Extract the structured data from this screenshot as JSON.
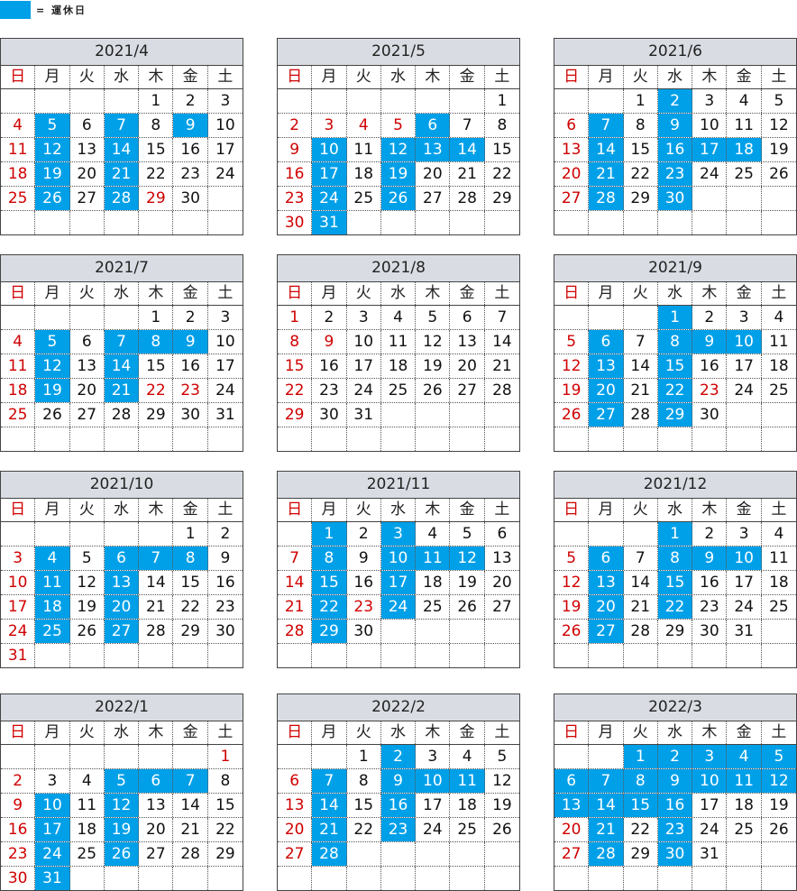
{
  "legend": {
    "color": "#00A0E9",
    "text": "= 運休日"
  },
  "weekday_headers": [
    "日",
    "月",
    "火",
    "水",
    "木",
    "金",
    "土"
  ],
  "colors": {
    "off_day": "#00A0E9",
    "sunday_holiday": "#d00000",
    "title_bg": "#d9dde3"
  },
  "calendars": [
    {
      "title": "2021/4",
      "weeks": [
        [
          null,
          null,
          null,
          null,
          "1",
          "2",
          "3"
        ],
        [
          "4",
          "5",
          "6",
          "7",
          "8",
          "9",
          "10"
        ],
        [
          "11",
          "12",
          "13",
          "14",
          "15",
          "16",
          "17"
        ],
        [
          "18",
          "19",
          "20",
          "21",
          "22",
          "23",
          "24"
        ],
        [
          "25",
          "26",
          "27",
          "28",
          "29",
          "30",
          null
        ],
        [
          null,
          null,
          null,
          null,
          null,
          null,
          null
        ]
      ],
      "off_days": [
        "5",
        "7",
        "9",
        "12",
        "14",
        "19",
        "21",
        "26",
        "28"
      ],
      "holidays": [
        "29"
      ]
    },
    {
      "title": "2021/5",
      "weeks": [
        [
          null,
          null,
          null,
          null,
          null,
          null,
          "1"
        ],
        [
          "2",
          "3",
          "4",
          "5",
          "6",
          "7",
          "8"
        ],
        [
          "9",
          "10",
          "11",
          "12",
          "13",
          "14",
          "15"
        ],
        [
          "16",
          "17",
          "18",
          "19",
          "20",
          "21",
          "22"
        ],
        [
          "23",
          "24",
          "25",
          "26",
          "27",
          "28",
          "29"
        ],
        [
          "30",
          "31",
          null,
          null,
          null,
          null,
          null
        ]
      ],
      "off_days": [
        "6",
        "10",
        "12",
        "13",
        "14",
        "17",
        "19",
        "24",
        "26",
        "31"
      ],
      "holidays": [
        "3",
        "4",
        "5"
      ]
    },
    {
      "title": "2021/6",
      "weeks": [
        [
          null,
          null,
          "1",
          "2",
          "3",
          "4",
          "5"
        ],
        [
          "6",
          "7",
          "8",
          "9",
          "10",
          "11",
          "12"
        ],
        [
          "13",
          "14",
          "15",
          "16",
          "17",
          "18",
          "19"
        ],
        [
          "20",
          "21",
          "22",
          "23",
          "24",
          "25",
          "26"
        ],
        [
          "27",
          "28",
          "29",
          "30",
          null,
          null,
          null
        ],
        [
          null,
          null,
          null,
          null,
          null,
          null,
          null
        ]
      ],
      "off_days": [
        "2",
        "7",
        "9",
        "14",
        "16",
        "17",
        "18",
        "21",
        "23",
        "28",
        "30"
      ],
      "holidays": []
    },
    {
      "title": "2021/7",
      "weeks": [
        [
          null,
          null,
          null,
          null,
          "1",
          "2",
          "3"
        ],
        [
          "4",
          "5",
          "6",
          "7",
          "8",
          "9",
          "10"
        ],
        [
          "11",
          "12",
          "13",
          "14",
          "15",
          "16",
          "17"
        ],
        [
          "18",
          "19",
          "20",
          "21",
          "22",
          "23",
          "24"
        ],
        [
          "25",
          "26",
          "27",
          "28",
          "29",
          "30",
          "31"
        ],
        [
          null,
          null,
          null,
          null,
          null,
          null,
          null
        ]
      ],
      "off_days": [
        "5",
        "7",
        "8",
        "9",
        "12",
        "14",
        "19",
        "21"
      ],
      "holidays": [
        "22",
        "23"
      ]
    },
    {
      "title": "2021/8",
      "weeks": [
        [
          "1",
          "2",
          "3",
          "4",
          "5",
          "6",
          "7"
        ],
        [
          "8",
          "9",
          "10",
          "11",
          "12",
          "13",
          "14"
        ],
        [
          "15",
          "16",
          "17",
          "18",
          "19",
          "20",
          "21"
        ],
        [
          "22",
          "23",
          "24",
          "25",
          "26",
          "27",
          "28"
        ],
        [
          "29",
          "30",
          "31",
          null,
          null,
          null,
          null
        ],
        [
          null,
          null,
          null,
          null,
          null,
          null,
          null
        ]
      ],
      "off_days": [],
      "holidays": [
        "9"
      ]
    },
    {
      "title": "2021/9",
      "weeks": [
        [
          null,
          null,
          null,
          "1",
          "2",
          "3",
          "4"
        ],
        [
          "5",
          "6",
          "7",
          "8",
          "9",
          "10",
          "11"
        ],
        [
          "12",
          "13",
          "14",
          "15",
          "16",
          "17",
          "18"
        ],
        [
          "19",
          "20",
          "21",
          "22",
          "23",
          "24",
          "25"
        ],
        [
          "26",
          "27",
          "28",
          "29",
          "30",
          null,
          null
        ],
        [
          null,
          null,
          null,
          null,
          null,
          null,
          null
        ]
      ],
      "off_days": [
        "1",
        "6",
        "8",
        "9",
        "10",
        "13",
        "15",
        "20",
        "22",
        "27",
        "29"
      ],
      "holidays": [
        "23"
      ]
    },
    {
      "title": "2021/10",
      "weeks": [
        [
          null,
          null,
          null,
          null,
          null,
          "1",
          "2"
        ],
        [
          "3",
          "4",
          "5",
          "6",
          "7",
          "8",
          "9"
        ],
        [
          "10",
          "11",
          "12",
          "13",
          "14",
          "15",
          "16"
        ],
        [
          "17",
          "18",
          "19",
          "20",
          "21",
          "22",
          "23"
        ],
        [
          "24",
          "25",
          "26",
          "27",
          "28",
          "29",
          "30"
        ],
        [
          "31",
          null,
          null,
          null,
          null,
          null,
          null
        ]
      ],
      "off_days": [
        "4",
        "6",
        "7",
        "8",
        "11",
        "13",
        "18",
        "20",
        "25",
        "27"
      ],
      "holidays": []
    },
    {
      "title": "2021/11",
      "weeks": [
        [
          null,
          "1",
          "2",
          "3",
          "4",
          "5",
          "6"
        ],
        [
          "7",
          "8",
          "9",
          "10",
          "11",
          "12",
          "13"
        ],
        [
          "14",
          "15",
          "16",
          "17",
          "18",
          "19",
          "20"
        ],
        [
          "21",
          "22",
          "23",
          "24",
          "25",
          "26",
          "27"
        ],
        [
          "28",
          "29",
          "30",
          null,
          null,
          null,
          null
        ],
        [
          null,
          null,
          null,
          null,
          null,
          null,
          null
        ]
      ],
      "off_days": [
        "1",
        "3",
        "8",
        "10",
        "11",
        "12",
        "15",
        "17",
        "22",
        "24",
        "29"
      ],
      "holidays": [
        "23"
      ]
    },
    {
      "title": "2021/12",
      "weeks": [
        [
          null,
          null,
          null,
          "1",
          "2",
          "3",
          "4"
        ],
        [
          "5",
          "6",
          "7",
          "8",
          "9",
          "10",
          "11"
        ],
        [
          "12",
          "13",
          "14",
          "15",
          "16",
          "17",
          "18"
        ],
        [
          "19",
          "20",
          "21",
          "22",
          "23",
          "24",
          "25"
        ],
        [
          "26",
          "27",
          "28",
          "29",
          "30",
          "31",
          null
        ],
        [
          null,
          null,
          null,
          null,
          null,
          null,
          null
        ]
      ],
      "off_days": [
        "1",
        "6",
        "8",
        "9",
        "10",
        "13",
        "15",
        "20",
        "22",
        "27"
      ],
      "holidays": []
    },
    {
      "title": "2022/1",
      "weeks": [
        [
          null,
          null,
          null,
          null,
          null,
          null,
          "1"
        ],
        [
          "2",
          "3",
          "4",
          "5",
          "6",
          "7",
          "8"
        ],
        [
          "9",
          "10",
          "11",
          "12",
          "13",
          "14",
          "15"
        ],
        [
          "16",
          "17",
          "18",
          "19",
          "20",
          "21",
          "22"
        ],
        [
          "23",
          "24",
          "25",
          "26",
          "27",
          "28",
          "29"
        ],
        [
          "30",
          "31",
          null,
          null,
          null,
          null,
          null
        ]
      ],
      "off_days": [
        "5",
        "6",
        "7",
        "10",
        "12",
        "17",
        "19",
        "24",
        "26",
        "31"
      ],
      "holidays": [
        "1"
      ]
    },
    {
      "title": "2022/2",
      "weeks": [
        [
          null,
          null,
          "1",
          "2",
          "3",
          "4",
          "5"
        ],
        [
          "6",
          "7",
          "8",
          "9",
          "10",
          "11",
          "12"
        ],
        [
          "13",
          "14",
          "15",
          "16",
          "17",
          "18",
          "19"
        ],
        [
          "20",
          "21",
          "22",
          "23",
          "24",
          "25",
          "26"
        ],
        [
          "27",
          "28",
          null,
          null,
          null,
          null,
          null
        ],
        [
          null,
          null,
          null,
          null,
          null,
          null,
          null
        ]
      ],
      "off_days": [
        "2",
        "7",
        "9",
        "10",
        "11",
        "14",
        "16",
        "21",
        "23",
        "28"
      ],
      "holidays": []
    },
    {
      "title": "2022/3",
      "weeks": [
        [
          null,
          null,
          "1",
          "2",
          "3",
          "4",
          "5"
        ],
        [
          "6",
          "7",
          "8",
          "9",
          "10",
          "11",
          "12"
        ],
        [
          "13",
          "14",
          "15",
          "16",
          "17",
          "18",
          "19"
        ],
        [
          "20",
          "21",
          "22",
          "23",
          "24",
          "25",
          "26"
        ],
        [
          "27",
          "28",
          "29",
          "30",
          "31",
          null,
          null
        ],
        [
          null,
          null,
          null,
          null,
          null,
          null,
          null
        ]
      ],
      "off_days": [
        "1",
        "2",
        "3",
        "4",
        "5",
        "6",
        "7",
        "8",
        "9",
        "10",
        "11",
        "12",
        "13",
        "14",
        "15",
        "16",
        "21",
        "23",
        "28",
        "30"
      ],
      "holidays": []
    }
  ]
}
